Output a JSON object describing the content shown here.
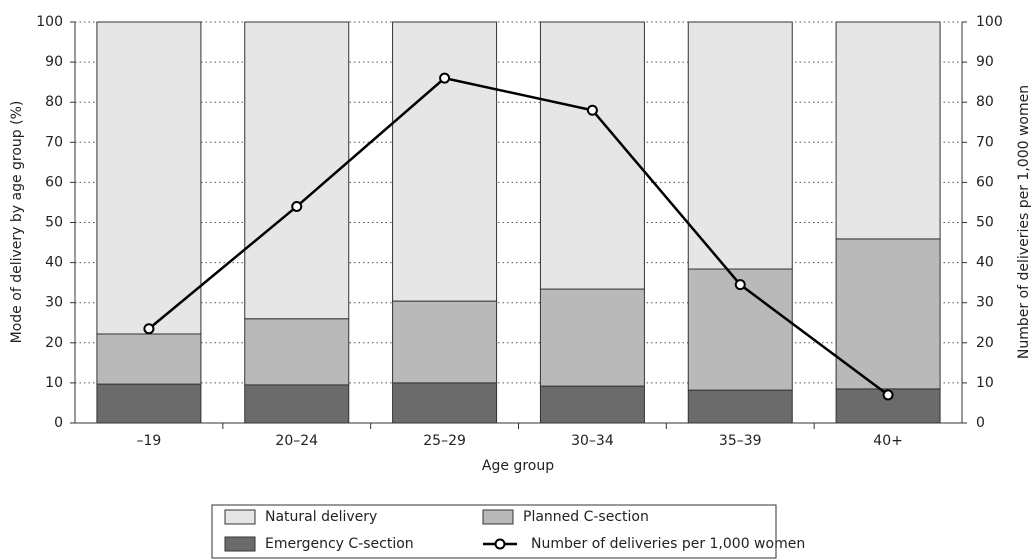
{
  "chart_data": {
    "type": "bar",
    "x_label": "Age group",
    "y_label": "Mode of delivery by age group (%)",
    "y2_label": "Number of deliveries per 1,000 women",
    "categories": [
      "–19",
      "20–24",
      "25–29",
      "30–34",
      "35–39",
      "40+"
    ],
    "series": [
      {
        "name": "Natural delivery",
        "type": "bar",
        "color": "#e6e6e6",
        "values": [
          77.8,
          74,
          69.6,
          66.6,
          61.6,
          54.1
        ]
      },
      {
        "name": "Planned C-section",
        "type": "bar",
        "color": "#b9b9b9",
        "values": [
          12.5,
          16.5,
          20.4,
          24.2,
          30.2,
          37.4
        ]
      },
      {
        "name": "Emergency C-section",
        "type": "bar",
        "color": "#6b6b6b",
        "values": [
          9.7,
          9.5,
          10,
          9.2,
          8.2,
          8.5
        ]
      },
      {
        "name": "Number of deliveries per 1,000 women",
        "type": "line",
        "axis": "y2",
        "color": "#000000",
        "values": [
          23.5,
          54,
          86,
          78,
          34.5,
          7
        ]
      }
    ],
    "ylim": [
      0,
      100
    ],
    "yticks": [
      0,
      10,
      20,
      30,
      40,
      50,
      60,
      70,
      80,
      90,
      100
    ],
    "y2lim": [
      0,
      100
    ],
    "y2ticks": [
      0,
      10,
      20,
      30,
      40,
      50,
      60,
      70,
      80,
      90,
      100
    ],
    "grid": true,
    "stacked": true,
    "legend": "bottom"
  }
}
